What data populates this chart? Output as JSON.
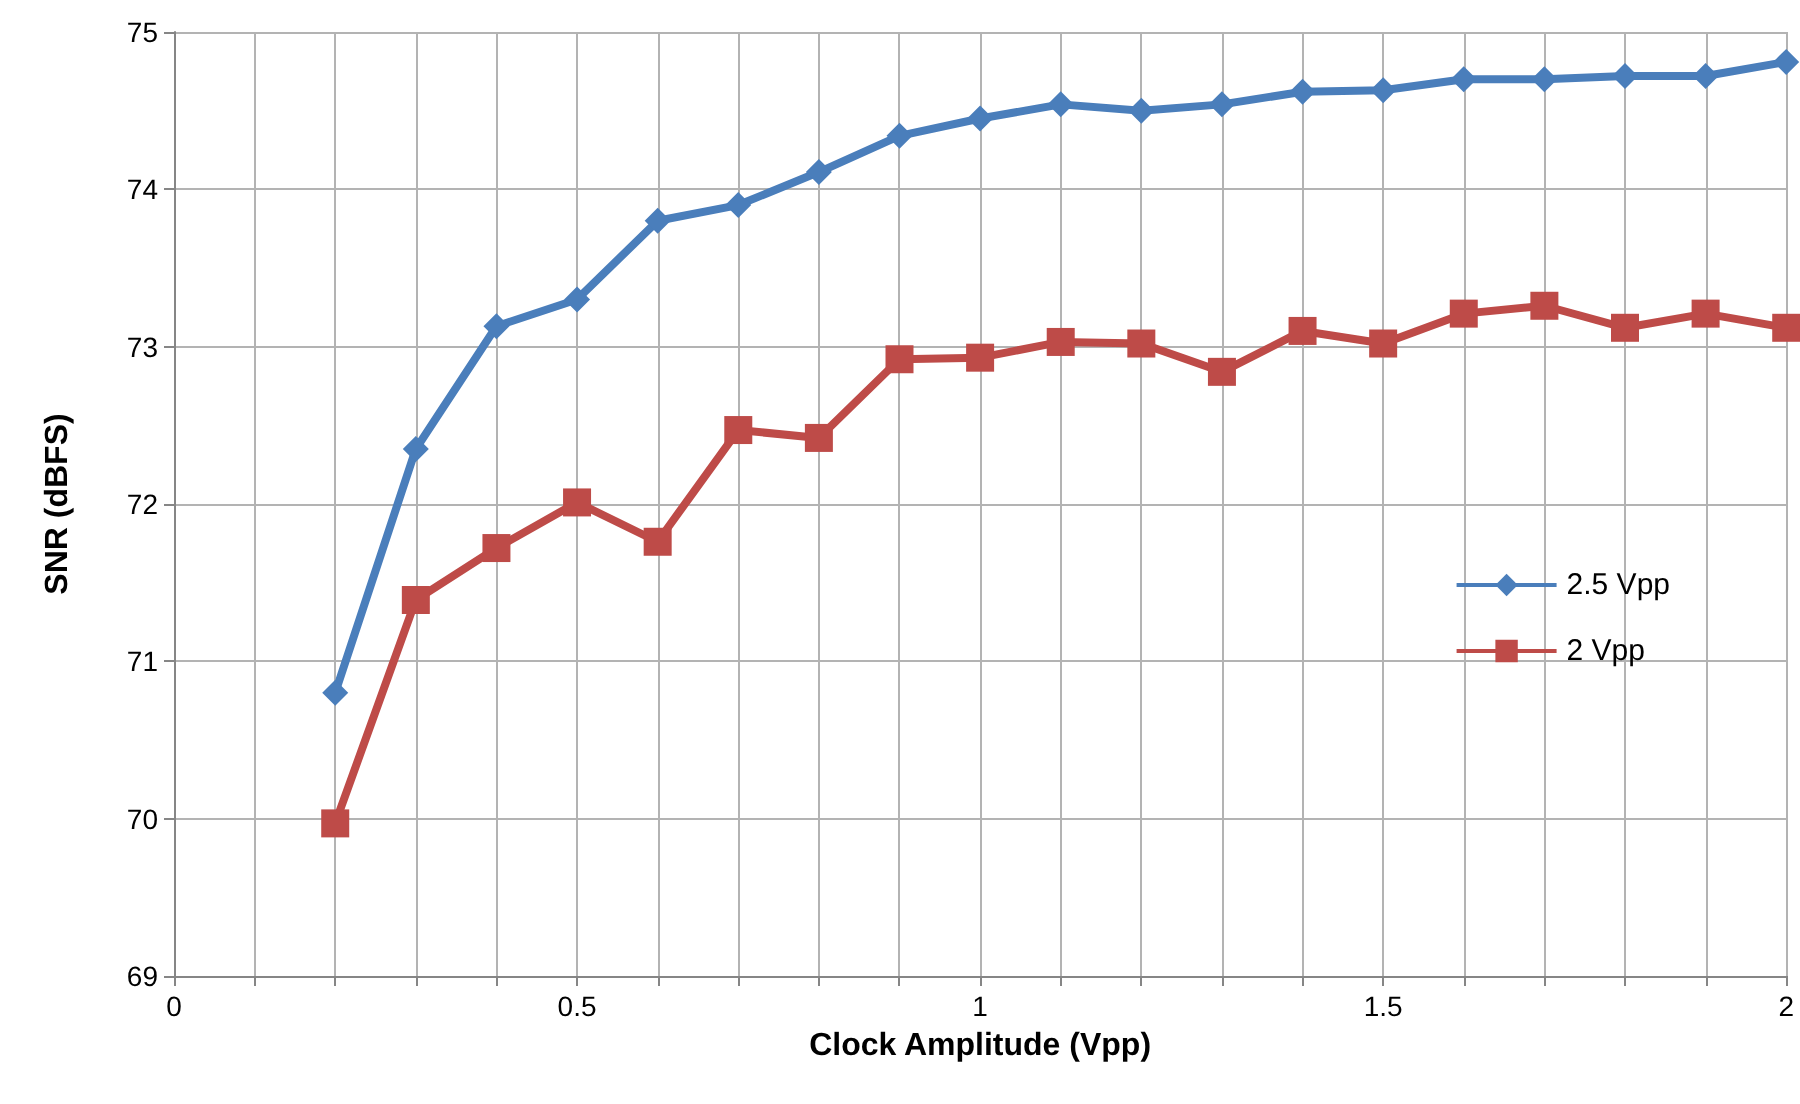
{
  "chart_data": {
    "type": "line",
    "xlabel": "Clock Amplitude (Vpp)",
    "ylabel": "SNR (dBFS)",
    "x": [
      0.2,
      0.3,
      0.4,
      0.5,
      0.6,
      0.7,
      0.8,
      0.9,
      1.0,
      1.1,
      1.2,
      1.3,
      1.4,
      1.5,
      1.6,
      1.7,
      1.8,
      1.9,
      2.0
    ],
    "series": [
      {
        "name": "2.5 Vpp",
        "color": "#4a7ebb",
        "marker": "diamond",
        "values": [
          70.8,
          72.35,
          73.13,
          73.3,
          73.8,
          73.9,
          74.11,
          74.34,
          74.45,
          74.54,
          74.5,
          74.54,
          74.62,
          74.63,
          74.7,
          74.7,
          74.72,
          74.72,
          74.81
        ]
      },
      {
        "name": "2 Vpp",
        "color": "#be4b48",
        "marker": "square",
        "values": [
          69.97,
          71.39,
          71.72,
          72.01,
          71.76,
          72.47,
          72.42,
          72.92,
          72.93,
          73.03,
          73.02,
          72.84,
          73.1,
          73.02,
          73.21,
          73.26,
          73.12,
          73.21,
          73.12
        ]
      }
    ],
    "xlim": [
      0,
      2
    ],
    "xticks": [
      0,
      {
        "value": 0.1,
        "label": null
      },
      {
        "value": 0.2,
        "label": null
      },
      {
        "value": 0.3,
        "label": null
      },
      {
        "value": 0.4,
        "label": null
      },
      0.5,
      {
        "value": 0.6,
        "label": null
      },
      {
        "value": 0.7,
        "label": null
      },
      {
        "value": 0.8,
        "label": null
      },
      {
        "value": 0.9,
        "label": null
      },
      1,
      {
        "value": 1.1,
        "label": null
      },
      {
        "value": 1.2,
        "label": null
      },
      {
        "value": 1.3,
        "label": null
      },
      {
        "value": 1.4,
        "label": null
      },
      1.5,
      {
        "value": 1.6,
        "label": null
      },
      {
        "value": 1.7,
        "label": null
      },
      {
        "value": 1.8,
        "label": null
      },
      {
        "value": 1.9,
        "label": null
      },
      2
    ],
    "ylim": [
      69,
      75
    ],
    "yticks": [
      69,
      70,
      71,
      72,
      73,
      74,
      75
    ],
    "grid": true,
    "legend": "right",
    "line_style": "solid"
  }
}
